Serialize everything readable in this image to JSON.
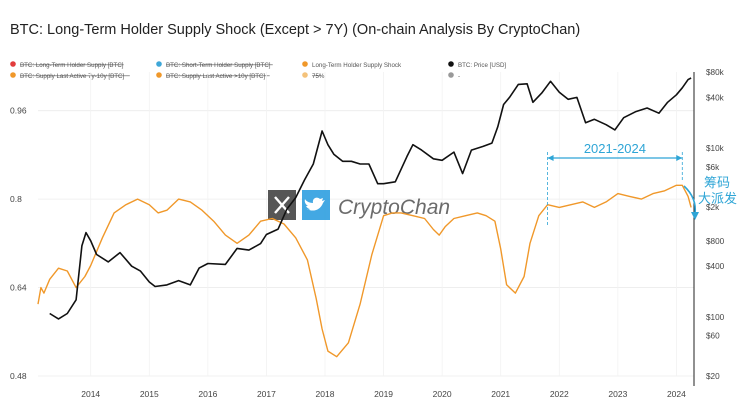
{
  "chart_data": {
    "type": "line",
    "title": "BTC: Long-Term Holder Supply Shock (Except > 7Y) (On-chain Analysis By CryptoChan)",
    "legend": {
      "placement": "top",
      "items": [
        {
          "label": "BTC: Long-Term Holder Supply [BTC]",
          "color": "#e23c3c",
          "active": false
        },
        {
          "label": "BTC: Short-Term Holder Supply [BTC]",
          "color": "#3ea7d8",
          "active": false
        },
        {
          "label": "Long-Term Holder Supply Shock",
          "color": "#f0982a",
          "active": true
        },
        {
          "label": "BTC: Price [USD]",
          "color": "#111111",
          "active": true
        },
        {
          "label": "BTC: Supply Last Active 7y-10y [BTC]",
          "color": "#f0982a",
          "active": false
        },
        {
          "label": "BTC: Supply Last Active >10y [BTC]",
          "color": "#f0982a",
          "active": false
        },
        {
          "label": "75%",
          "color": "#f4c27a",
          "active": false
        },
        {
          "label": "-",
          "color": "#999999",
          "active": false
        }
      ]
    },
    "x_ticks": [
      "2014",
      "2015",
      "2016",
      "2017",
      "2018",
      "2019",
      "2020",
      "2021",
      "2022",
      "2023",
      "2024"
    ],
    "xlim": [
      2013.1,
      2024.3
    ],
    "left_axis": {
      "ticks": [
        "0.96",
        "0.8",
        "0.64",
        "0.48"
      ],
      "values": [
        0.96,
        0.8,
        0.64,
        0.48
      ],
      "ylim": [
        0.48,
        1.03
      ]
    },
    "right_axis": {
      "scale": "log",
      "ticks": [
        "$80k",
        "$40k",
        "$10k",
        "$6k",
        "$2k",
        "$800",
        "$400",
        "$100",
        "$60",
        "$20"
      ],
      "values": [
        80000,
        40000,
        10000,
        6000,
        2000,
        800,
        400,
        100,
        60,
        20
      ],
      "ylim": [
        20,
        80000
      ]
    },
    "series": [
      {
        "name": "Long-Term Holder Supply Shock",
        "axis": "left",
        "color": "#f0982a",
        "x": [
          2013.1,
          2013.15,
          2013.2,
          2013.3,
          2013.45,
          2013.6,
          2013.75,
          2013.9,
          2014.0,
          2014.2,
          2014.4,
          2014.6,
          2014.8,
          2015.0,
          2015.15,
          2015.3,
          2015.5,
          2015.7,
          2015.9,
          2016.1,
          2016.3,
          2016.5,
          2016.7,
          2016.9,
          2017.1,
          2017.3,
          2017.5,
          2017.7,
          2017.85,
          2017.95,
          2018.05,
          2018.2,
          2018.4,
          2018.6,
          2018.8,
          2019.0,
          2019.15,
          2019.3,
          2019.5,
          2019.7,
          2019.85,
          2019.95,
          2020.05,
          2020.2,
          2020.4,
          2020.6,
          2020.75,
          2020.9,
          2021.0,
          2021.1,
          2021.25,
          2021.4,
          2021.5,
          2021.65,
          2021.8,
          2022.0,
          2022.2,
          2022.4,
          2022.6,
          2022.8,
          2023.0,
          2023.2,
          2023.4,
          2023.6,
          2023.8,
          2024.0,
          2024.1,
          2024.2,
          2024.25
        ],
        "values": [
          0.61,
          0.64,
          0.63,
          0.655,
          0.675,
          0.67,
          0.64,
          0.66,
          0.68,
          0.73,
          0.775,
          0.79,
          0.8,
          0.79,
          0.775,
          0.78,
          0.8,
          0.795,
          0.78,
          0.76,
          0.735,
          0.72,
          0.735,
          0.76,
          0.765,
          0.755,
          0.73,
          0.69,
          0.62,
          0.565,
          0.525,
          0.515,
          0.54,
          0.61,
          0.7,
          0.77,
          0.775,
          0.775,
          0.77,
          0.765,
          0.745,
          0.735,
          0.75,
          0.765,
          0.77,
          0.775,
          0.77,
          0.76,
          0.71,
          0.645,
          0.63,
          0.66,
          0.72,
          0.77,
          0.79,
          0.785,
          0.79,
          0.795,
          0.785,
          0.795,
          0.81,
          0.805,
          0.8,
          0.81,
          0.815,
          0.825,
          0.825,
          0.805,
          0.785
        ]
      },
      {
        "name": "BTC: Price [USD]",
        "axis": "right",
        "color": "#111111",
        "x": [
          2013.3,
          2013.45,
          2013.6,
          2013.75,
          2013.85,
          2013.92,
          2014.0,
          2014.1,
          2014.3,
          2014.5,
          2014.7,
          2014.85,
          2015.0,
          2015.1,
          2015.3,
          2015.5,
          2015.7,
          2015.85,
          2016.0,
          2016.3,
          2016.5,
          2016.7,
          2016.9,
          2017.0,
          2017.2,
          2017.35,
          2017.5,
          2017.65,
          2017.8,
          2017.95,
          2018.05,
          2018.15,
          2018.3,
          2018.45,
          2018.6,
          2018.75,
          2018.9,
          2019.0,
          2019.2,
          2019.4,
          2019.5,
          2019.65,
          2019.85,
          2020.0,
          2020.2,
          2020.35,
          2020.5,
          2020.7,
          2020.85,
          2020.95,
          2021.05,
          2021.15,
          2021.3,
          2021.45,
          2021.55,
          2021.7,
          2021.85,
          2022.0,
          2022.15,
          2022.3,
          2022.45,
          2022.6,
          2022.8,
          2022.95,
          2023.1,
          2023.3,
          2023.5,
          2023.7,
          2023.85,
          2024.0,
          2024.1,
          2024.2,
          2024.25
        ],
        "values": [
          110,
          95,
          110,
          160,
          700,
          1000,
          800,
          550,
          450,
          580,
          400,
          350,
          260,
          230,
          240,
          270,
          240,
          380,
          430,
          420,
          650,
          620,
          740,
          950,
          1100,
          1900,
          2600,
          4200,
          6500,
          16000,
          11000,
          8500,
          7000,
          7000,
          6500,
          6500,
          3800,
          3800,
          4000,
          8000,
          11000,
          9500,
          7500,
          7200,
          9000,
          5000,
          9500,
          10500,
          11500,
          18000,
          33000,
          40000,
          57000,
          58000,
          35000,
          45000,
          62000,
          46000,
          38000,
          40000,
          20000,
          22000,
          19000,
          16500,
          23000,
          27000,
          30000,
          26000,
          35000,
          43000,
          52000,
          65000,
          68000
        ]
      }
    ],
    "annotations": [
      {
        "text": "2021-2024",
        "color": "#2ea5d6"
      },
      {
        "text": "筹码",
        "color": "#2ea5d6"
      },
      {
        "text": "大派发",
        "color": "#2ea5d6"
      }
    ],
    "watermark": "CryptoChan",
    "grid": true
  }
}
